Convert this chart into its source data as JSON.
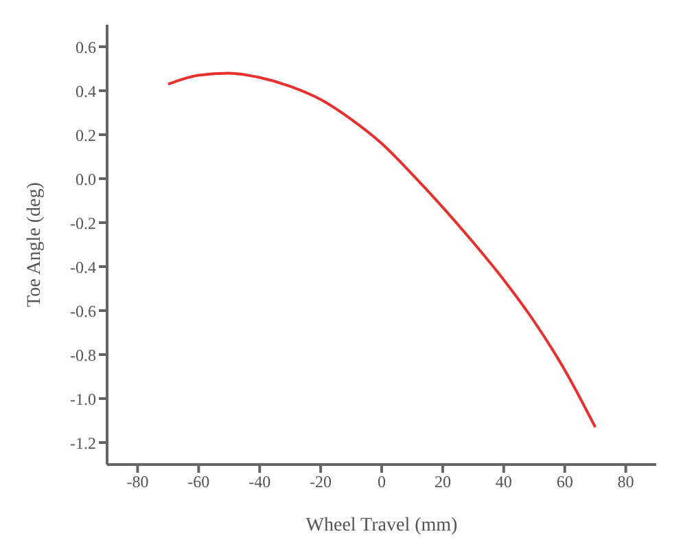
{
  "chart_data": {
    "type": "line",
    "xlabel": "Wheel Travel (mm)",
    "ylabel": "Toe Angle (deg)",
    "x": [
      -70,
      -60,
      -50,
      -40,
      -30,
      -20,
      -10,
      0,
      10,
      20,
      30,
      40,
      50,
      60,
      70
    ],
    "series": [
      {
        "color": "#e8312f",
        "values": [
          0.43,
          0.47,
          0.48,
          0.46,
          0.42,
          0.36,
          0.27,
          0.16,
          0.02,
          -0.13,
          -0.29,
          -0.46,
          -0.65,
          -0.87,
          -1.13
        ]
      }
    ],
    "xlim": [
      -90,
      90
    ],
    "xticks": [
      -80,
      -60,
      -40,
      -20,
      0,
      20,
      40,
      60,
      80
    ],
    "ylim": [
      -1.3,
      0.7
    ],
    "yticks": [
      {
        "value": -1.2,
        "label": "-1.2"
      },
      {
        "value": -1,
        "label": "-1.0"
      },
      {
        "value": -0.8,
        "label": "-0.8"
      },
      {
        "value": -0.6,
        "label": "-0.6"
      },
      {
        "value": -0.4,
        "label": "-0.4"
      },
      {
        "value": -0.2,
        "label": "-0.2"
      },
      {
        "value": 0,
        "label": "0.0"
      },
      {
        "value": 0.2,
        "label": "0.2"
      },
      {
        "value": 0.4,
        "label": "0.4"
      },
      {
        "value": 0.6,
        "label": "0.6"
      }
    ],
    "grid": false,
    "legend": false,
    "marker": "none",
    "line_style": "solid"
  }
}
